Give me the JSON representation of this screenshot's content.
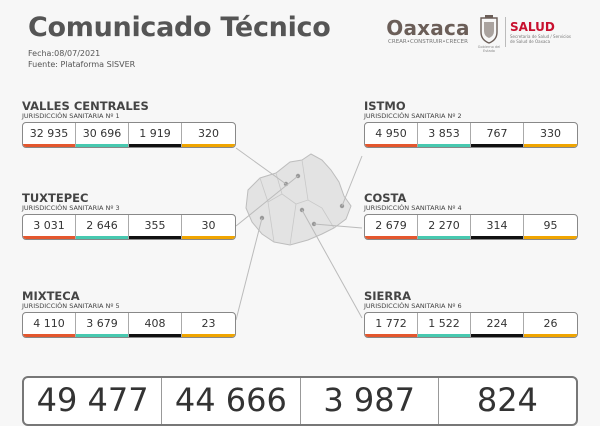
{
  "header": {
    "title": "Comunicado Técnico",
    "date": "Fecha:08/07/2021",
    "source": "Fuente: Plataforma SISVER"
  },
  "logos": {
    "oaxaca": "Oaxaca",
    "oaxaca_tagline": "CREAR•CONSTRUIR•CRECER",
    "salud": "SALUD",
    "salud_subtitle": "Secretaría de Salud / Servicios de Salud de Oaxaca",
    "crest_caption": "Gobierno del Estado"
  },
  "colors": {
    "col1": "#e4572e",
    "col2": "#48c9b0",
    "col3": "#111111",
    "col4": "#f0a500"
  },
  "regions": [
    {
      "name": "VALLES CENTRALES",
      "jurisdiction": "JURISDICCIÓN SANITARIA Nº 1",
      "values": [
        "32 935",
        "30 696",
        "1 919",
        "320"
      ]
    },
    {
      "name": "ISTMO",
      "jurisdiction": "JURISDICCIÓN SANITARIA Nº 2",
      "values": [
        "4 950",
        "3 853",
        "767",
        "330"
      ]
    },
    {
      "name": "TUXTEPEC",
      "jurisdiction": "JURISDICCIÓN SANITARIA Nº 3",
      "values": [
        "3 031",
        "2 646",
        "355",
        "30"
      ]
    },
    {
      "name": "COSTA",
      "jurisdiction": "JURISDICCIÓN SANITARIA Nº 4",
      "values": [
        "2 679",
        "2 270",
        "314",
        "95"
      ]
    },
    {
      "name": "MIXTECA",
      "jurisdiction": "JURISDICCIÓN SANITARIA Nº 5",
      "values": [
        "4 110",
        "3 679",
        "408",
        "23"
      ]
    },
    {
      "name": "SIERRA",
      "jurisdiction": "JURISDICCIÓN SANITARIA Nº 6",
      "values": [
        "1 772",
        "1 522",
        "224",
        "26"
      ]
    }
  ],
  "totals": [
    "49 477",
    "44 666",
    "3 987",
    "824"
  ]
}
